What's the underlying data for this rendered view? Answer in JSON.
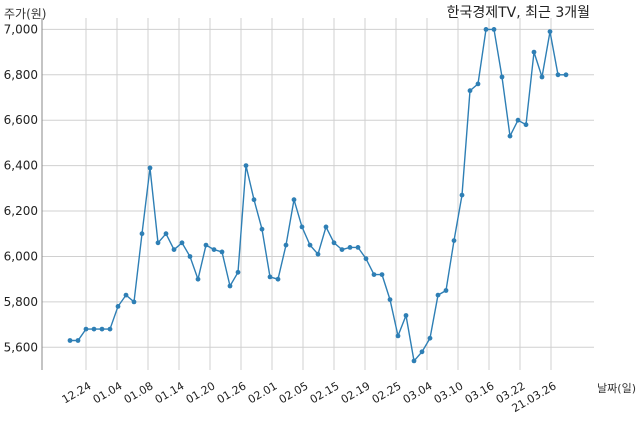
{
  "chart_data": {
    "type": "line",
    "title": "한국경제TV, 최근 3개월",
    "ylabel": "주가(원)",
    "xlabel": "날짜(일)",
    "ylim": [
      5500,
      7050
    ],
    "yticks": [
      5600,
      5800,
      6000,
      6200,
      6400,
      6600,
      6800,
      7000
    ],
    "ytick_labels": [
      "5,600",
      "5,800",
      "6,000",
      "6,200",
      "6,400",
      "6,600",
      "6,800",
      "7,000"
    ],
    "xtick_labels": [
      "12.24",
      "01.04",
      "01.08",
      "01.14",
      "01.20",
      "01.26",
      "02.01",
      "02.05",
      "02.15",
      "02.19",
      "02.25",
      "03.04",
      "03.10",
      "03.16",
      "03.22",
      "21.03.26"
    ],
    "grid": true,
    "line_color": "#2e7fb5",
    "series": [
      {
        "values": [
          5630,
          5630,
          5680,
          5680,
          5680,
          5680,
          5780,
          5830,
          5800,
          6100,
          6390,
          6060,
          6100,
          6030,
          6060,
          6000,
          5900,
          6050,
          6030,
          6020,
          5870,
          5930,
          6400,
          6250,
          6120,
          5910,
          5900,
          6050,
          6250,
          6130,
          6050,
          6010,
          6130,
          6060,
          6030,
          6040,
          6040,
          5990,
          5920,
          5920,
          5810,
          5650,
          5740,
          5540,
          5580,
          5640,
          5830,
          5850,
          6070,
          6270,
          6730,
          6760,
          7000,
          7000,
          6790,
          6530,
          6600,
          6580,
          6900,
          6790,
          6990,
          6800,
          6800
        ]
      }
    ]
  }
}
